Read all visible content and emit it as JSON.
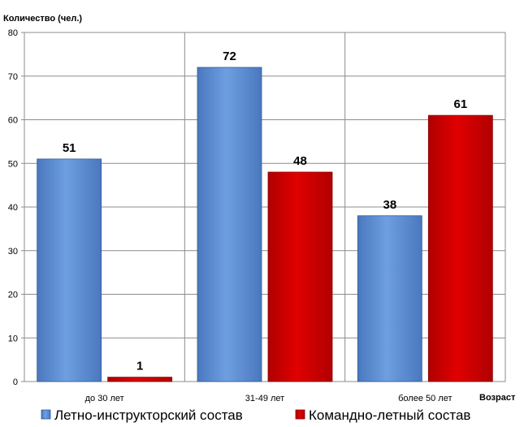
{
  "chart_data": {
    "type": "bar",
    "ylabel": "Количество (чел.)",
    "xlabel": "Возраст",
    "categories": [
      "до 30 лет",
      "31-49 лет",
      "более 50 лет"
    ],
    "series": [
      {
        "name": "Летно-инструкторский состав",
        "values": [
          51,
          72,
          38
        ],
        "color": "#5b8fd6"
      },
      {
        "name": "Командно-летный состав",
        "values": [
          1,
          48,
          61
        ],
        "color": "#cc0000"
      }
    ],
    "ylim": [
      0,
      80
    ],
    "yticks": [
      0,
      10,
      20,
      30,
      40,
      50,
      60,
      70,
      80
    ],
    "grid": true,
    "legend": "bottom"
  }
}
